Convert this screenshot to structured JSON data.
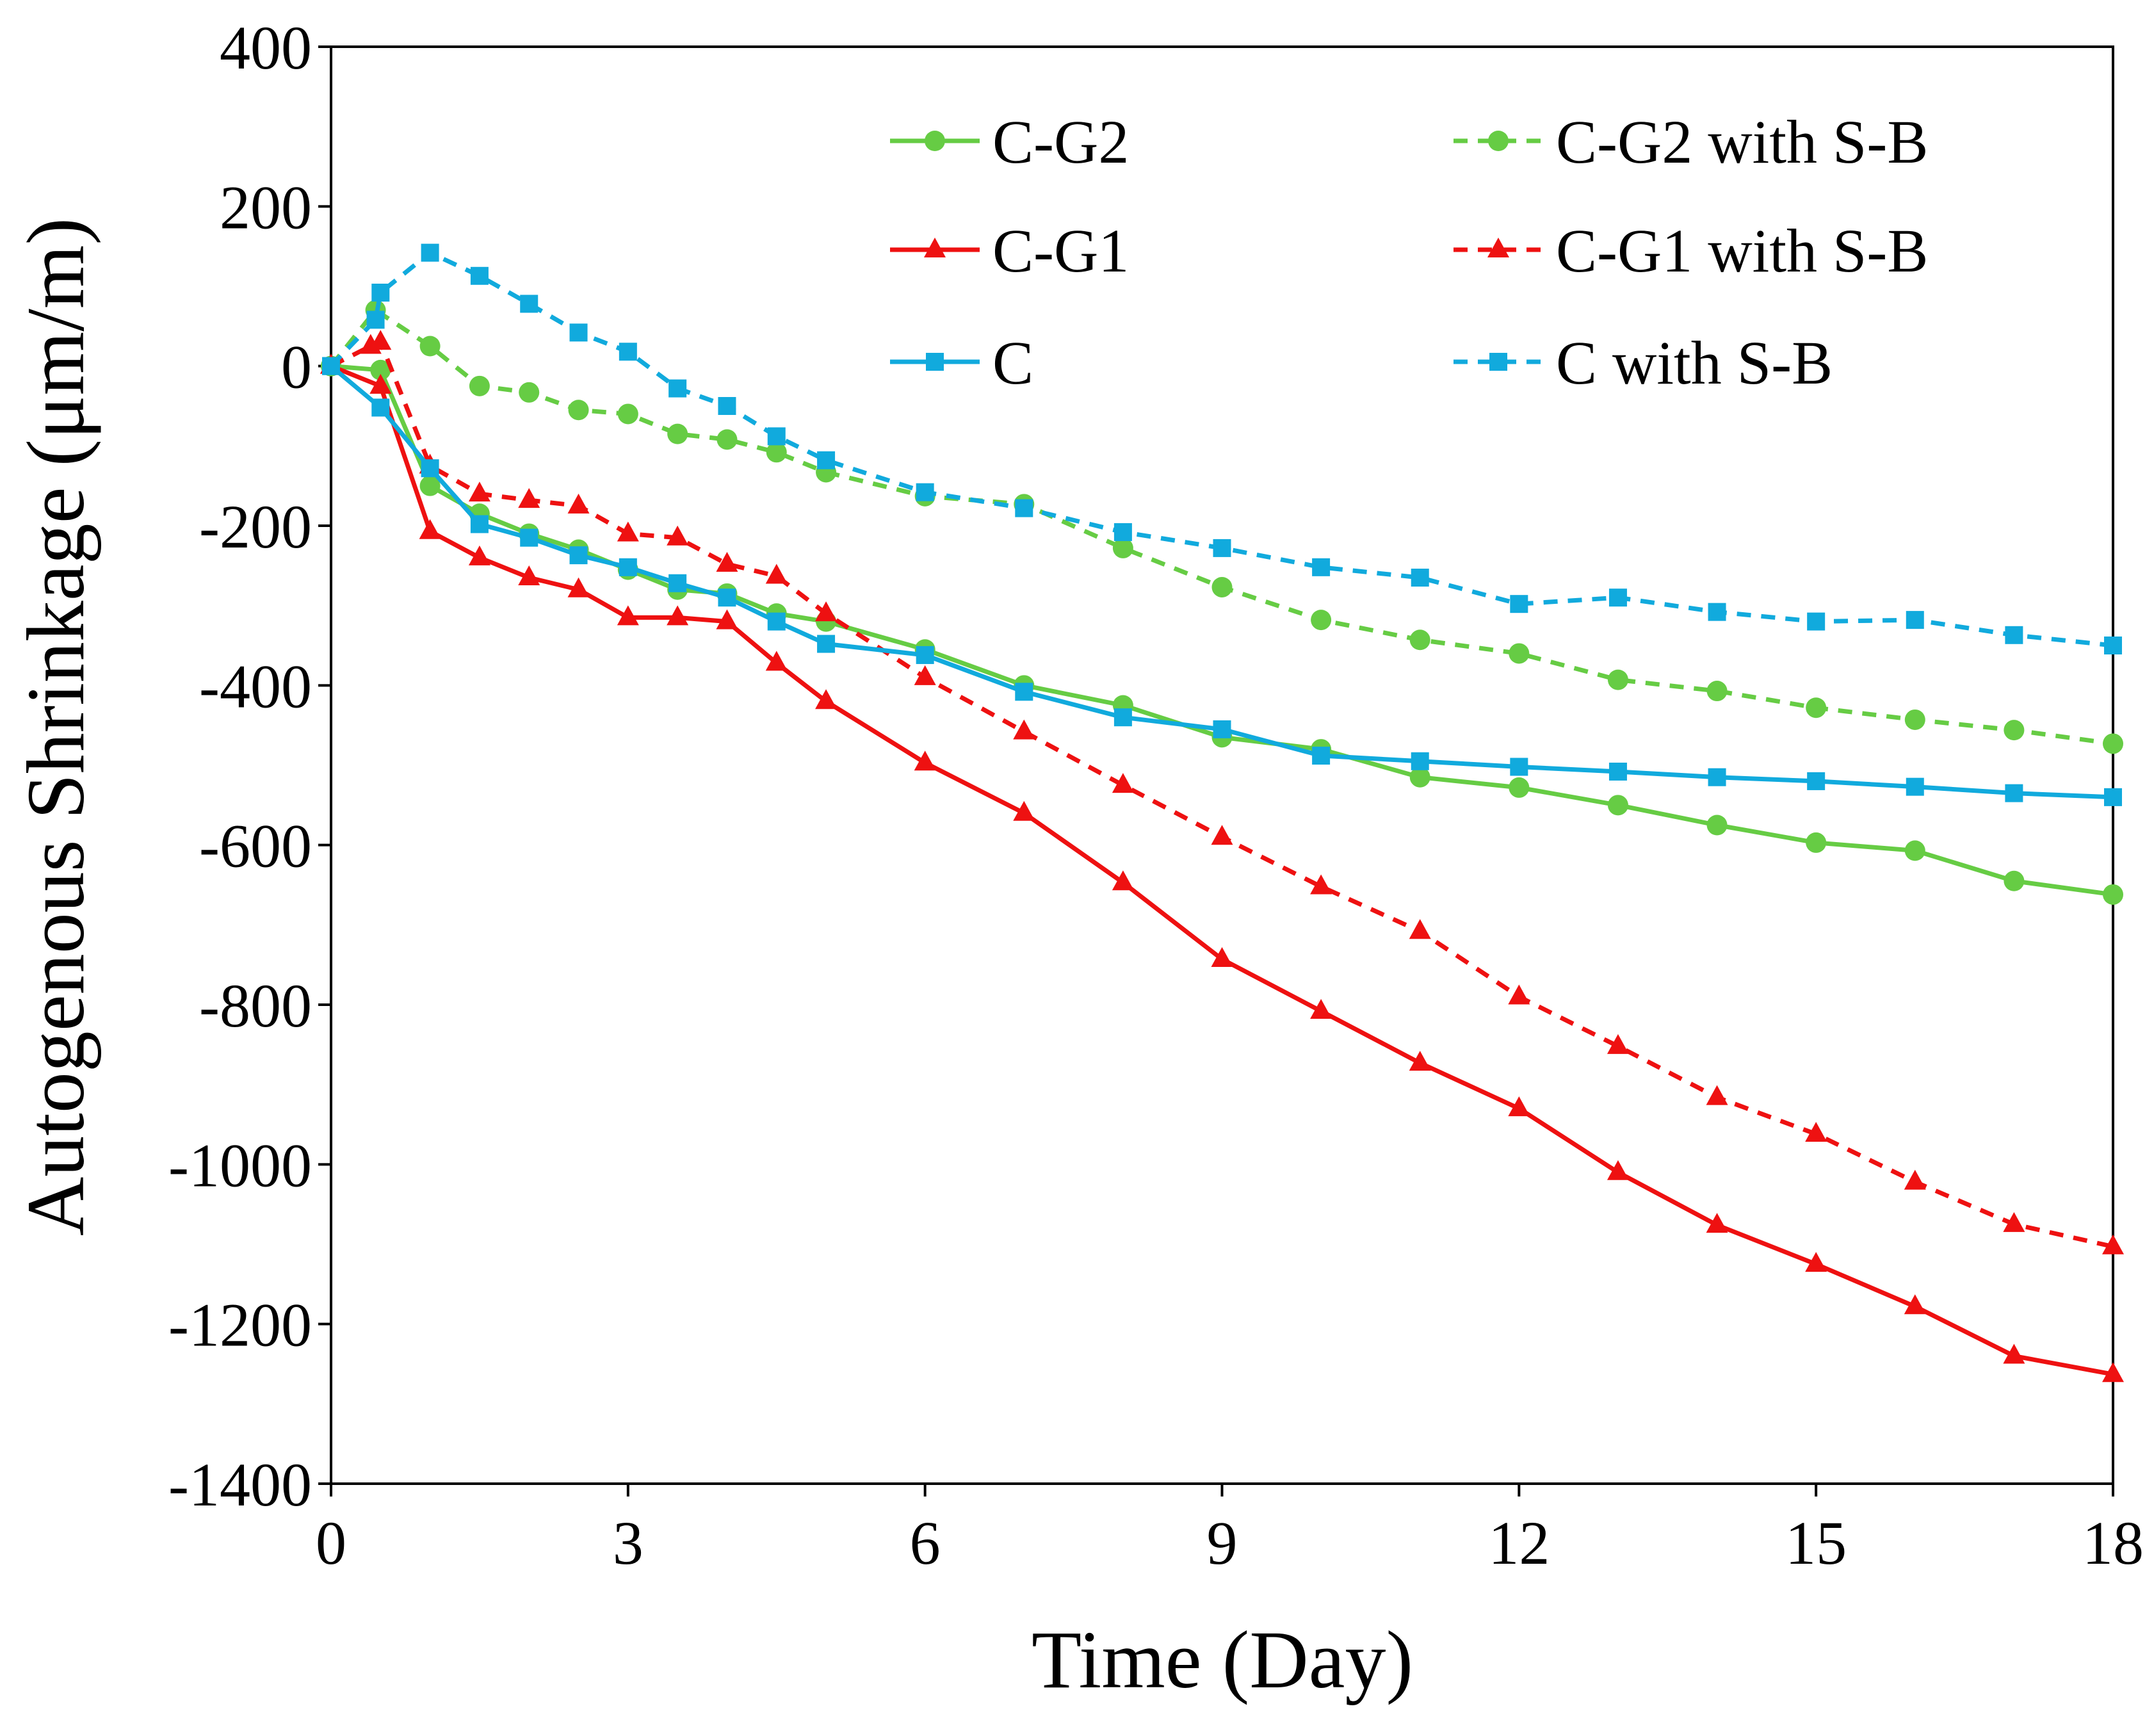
{
  "chart_data": {
    "type": "line",
    "title": "",
    "xlabel": "Time (Day)",
    "ylabel": "Autogenous Shrinkage (μm/m)",
    "xlim": [
      0,
      18
    ],
    "ylim": [
      -1400,
      400
    ],
    "xticks": [
      0,
      3,
      6,
      9,
      12,
      15,
      18
    ],
    "yticks": [
      400,
      200,
      0,
      -200,
      -400,
      -600,
      -800,
      -1000,
      -1200,
      -1400
    ],
    "grid": false,
    "legend_position": "top-right",
    "series": [
      {
        "name": "C-G2",
        "color": "#66cc44",
        "dash": "solid",
        "marker": "circle",
        "x": [
          0,
          0.5,
          1,
          1.5,
          2,
          2.5,
          3,
          3.5,
          4,
          4.5,
          5,
          6,
          7,
          8,
          9,
          10,
          11,
          12,
          13,
          14,
          15,
          16,
          17,
          18
        ],
        "y": [
          0,
          -5,
          -150,
          -185,
          -210,
          -230,
          -255,
          -280,
          -285,
          -310,
          -320,
          -355,
          -400,
          -425,
          -465,
          -480,
          -515,
          -528,
          -550,
          -575,
          -597,
          -607,
          -645,
          -662
        ]
      },
      {
        "name": "C-G2 with S-B",
        "color": "#66cc44",
        "dash": "dashed",
        "marker": "circle",
        "x": [
          0,
          0.45,
          1,
          1.5,
          2,
          2.5,
          3,
          3.5,
          4,
          4.5,
          5,
          6,
          7,
          8,
          9,
          10,
          11,
          12,
          13,
          14,
          15,
          16,
          17,
          18
        ],
        "y": [
          0,
          70,
          25,
          -25,
          -33,
          -55,
          -60,
          -85,
          -92,
          -108,
          -133,
          -163,
          -173,
          -228,
          -277,
          -318,
          -343,
          -360,
          -393,
          -407,
          -428,
          -443,
          -456,
          -473
        ]
      },
      {
        "name": "C-G1",
        "color": "#ee1111",
        "dash": "solid",
        "marker": "triangle",
        "x": [
          0,
          0.5,
          1,
          1.5,
          2,
          2.5,
          3,
          3.5,
          4,
          4.5,
          5,
          6,
          7,
          8,
          9,
          10,
          11,
          12,
          13,
          14,
          15,
          16,
          17,
          18
        ],
        "y": [
          0,
          -25,
          -207,
          -240,
          -265,
          -280,
          -315,
          -315,
          -320,
          -372,
          -420,
          -497,
          -560,
          -647,
          -743,
          -808,
          -873,
          -930,
          -1010,
          -1076,
          -1125,
          -1178,
          -1240,
          -1263
        ]
      },
      {
        "name": "C-G1 with S-B",
        "color": "#ee1111",
        "dash": "dashed",
        "marker": "triangle",
        "x": [
          0,
          0.4,
          0.5,
          1,
          1.5,
          2,
          2.5,
          3,
          3.5,
          4,
          4.5,
          5,
          6,
          7,
          8,
          9,
          10,
          11,
          12,
          13,
          14,
          15,
          16,
          17,
          18
        ],
        "y": [
          0,
          25,
          30,
          -125,
          -160,
          -168,
          -175,
          -210,
          -215,
          -248,
          -263,
          -310,
          -390,
          -458,
          -525,
          -590,
          -652,
          -708,
          -790,
          -852,
          -916,
          -962,
          -1022,
          -1075,
          -1103
        ]
      },
      {
        "name": "C",
        "color": "#11aadd",
        "dash": "solid",
        "marker": "square",
        "x": [
          0,
          0.5,
          1,
          1.5,
          2,
          2.5,
          3,
          3.5,
          4,
          4.5,
          5,
          6,
          7,
          8,
          9,
          10,
          11,
          12,
          13,
          14,
          15,
          16,
          17,
          18
        ],
        "y": [
          0,
          -52,
          -128,
          -198,
          -215,
          -237,
          -252,
          -272,
          -290,
          -320,
          -348,
          -362,
          -408,
          -440,
          -455,
          -488,
          -495,
          -502,
          -508,
          -515,
          -520,
          -527,
          -535,
          -540
        ]
      },
      {
        "name": "C with S-B",
        "color": "#11aadd",
        "dash": "dashed",
        "marker": "square",
        "x": [
          0,
          0.45,
          0.5,
          1,
          1.5,
          2,
          2.5,
          3,
          3.5,
          4,
          4.5,
          5,
          6,
          7,
          8,
          9,
          10,
          11,
          12,
          13,
          14,
          15,
          16,
          17,
          18
        ],
        "y": [
          0,
          58,
          92,
          142,
          113,
          78,
          42,
          18,
          -28,
          -50,
          -88,
          -118,
          -158,
          -178,
          -208,
          -228,
          -252,
          -265,
          -298,
          -290,
          -308,
          -320,
          -318,
          -337,
          -350
        ]
      }
    ]
  }
}
